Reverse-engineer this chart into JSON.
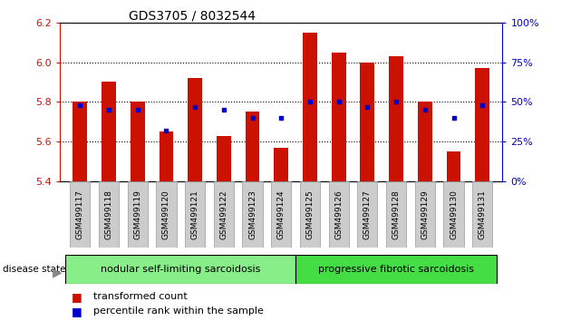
{
  "title": "GDS3705 / 8032544",
  "samples": [
    "GSM499117",
    "GSM499118",
    "GSM499119",
    "GSM499120",
    "GSM499121",
    "GSM499122",
    "GSM499123",
    "GSM499124",
    "GSM499125",
    "GSM499126",
    "GSM499127",
    "GSM499128",
    "GSM499129",
    "GSM499130",
    "GSM499131"
  ],
  "red_values": [
    5.8,
    5.9,
    5.8,
    5.65,
    5.92,
    5.63,
    5.75,
    5.57,
    6.15,
    6.05,
    6.0,
    6.03,
    5.8,
    5.55,
    5.97
  ],
  "blue_values": [
    48,
    45,
    45,
    32,
    47,
    45,
    40,
    40,
    50,
    50,
    47,
    50,
    45,
    40,
    48
  ],
  "ymin": 5.4,
  "ymax": 6.2,
  "y2min": 0,
  "y2max": 100,
  "yticks_left": [
    5.4,
    5.6,
    5.8,
    6.0,
    6.2
  ],
  "yticks_right": [
    0,
    25,
    50,
    75,
    100
  ],
  "group1_n": 8,
  "group2_n": 7,
  "group1_label": "nodular self-limiting sarcoidosis",
  "group2_label": "progressive fibrotic sarcoidosis",
  "disease_state_label": "disease state",
  "legend1": "transformed count",
  "legend2": "percentile rank within the sample",
  "bar_color": "#cc1100",
  "dot_color": "#0000cc",
  "bar_width": 0.5,
  "base": 5.4,
  "group_bg1": "#88ee88",
  "group_bg2": "#44dd44",
  "tick_label_bg": "#cccccc",
  "hgrid_levels": [
    5.6,
    5.8,
    6.0
  ]
}
